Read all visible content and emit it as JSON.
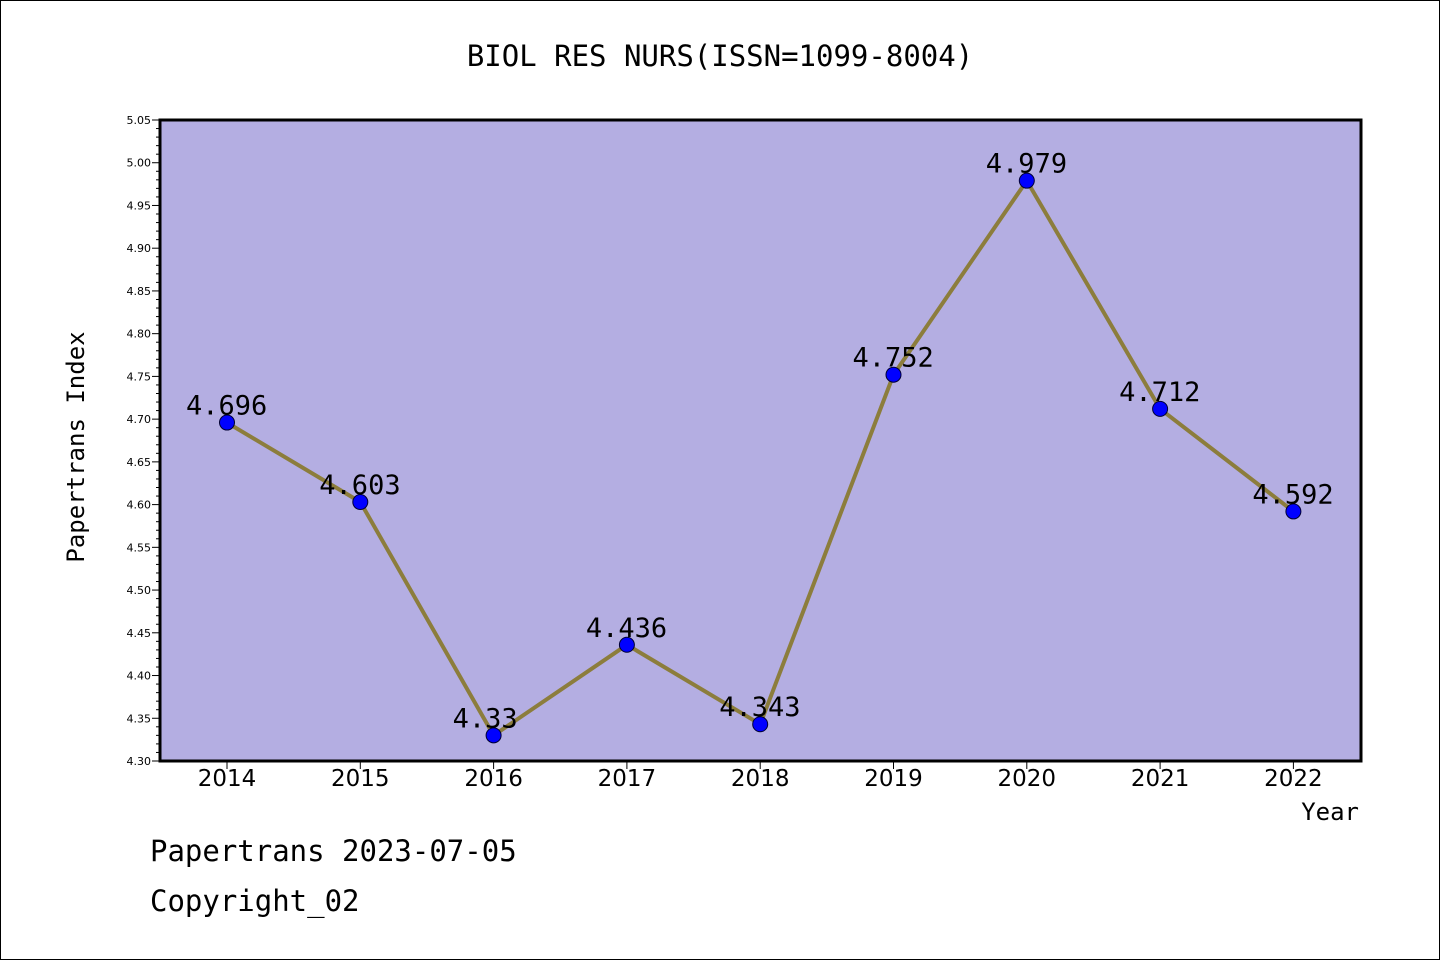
{
  "chart_data": {
    "type": "line",
    "title": "BIOL RES NURS(ISSN=1099-8004)",
    "xlabel": "Year",
    "ylabel": "Papertrans Index",
    "categories": [
      "2014",
      "2015",
      "2016",
      "2017",
      "2018",
      "2019",
      "2020",
      "2021",
      "2022"
    ],
    "series": [
      {
        "name": "Papertrans Index",
        "values": [
          4.696,
          4.603,
          4.33,
          4.436,
          4.343,
          4.752,
          4.979,
          4.712,
          4.592
        ]
      }
    ],
    "value_labels": [
      "4.696",
      "4.603",
      "4.33",
      "4.436",
      "4.343",
      "4.752",
      "4.979",
      "4.712",
      "4.592"
    ],
    "ylim": [
      4.3,
      5.05
    ],
    "yticks": [
      "4.30",
      "4.35",
      "4.40",
      "4.45",
      "4.50",
      "4.55",
      "4.60",
      "4.65",
      "4.70",
      "4.75",
      "4.80",
      "4.85",
      "4.90",
      "4.95",
      "5.00",
      "5.05"
    ],
    "grid": false,
    "colors": {
      "plot_bg": "#b4aee2",
      "line": "#8c7d3c",
      "marker": "#0000ff"
    }
  },
  "footer": {
    "date_line": "Papertrans 2023-07-05",
    "copyright": "Copyright_02"
  }
}
